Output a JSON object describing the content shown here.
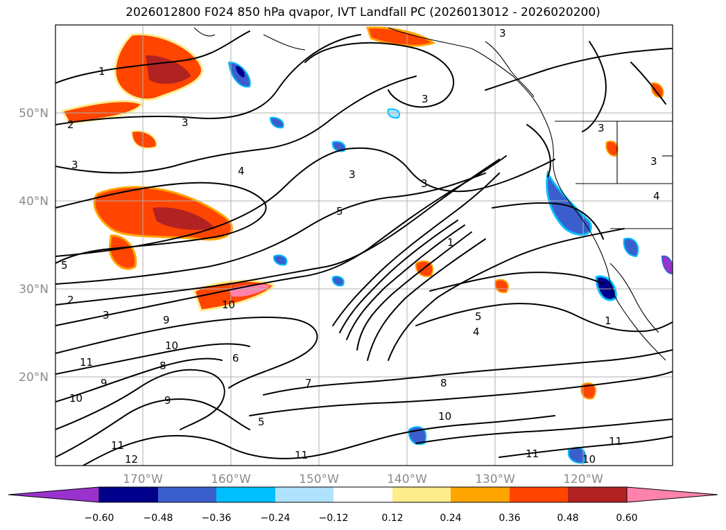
{
  "title": "2026012800 F024 850 hPa qvapor, IVT Landfall PC (2026013012 - 2026020200)",
  "lat_labels": [
    "50°N",
    "40°N",
    "30°N",
    "20°N"
  ],
  "lon_labels": [
    "170°W",
    "160°W",
    "150°W",
    "140°W",
    "130°W",
    "120°W"
  ],
  "colorbar": {
    "colors": [
      "#9a32cd",
      "#00008b",
      "#3a5fcd",
      "#00bfff",
      "#b0e2ff",
      "#ffffff",
      "#ffec8b",
      "#ffa500",
      "#ff4500",
      "#b22222",
      "#ff82ab"
    ],
    "tick_labels": [
      "−0.60",
      "−0.48",
      "−0.36",
      "−0.24",
      "−0.12",
      "0.12",
      "0.24",
      "0.36",
      "0.48",
      "0.60"
    ]
  },
  "contour_labels": [
    "1",
    "2",
    "3",
    "3",
    "3",
    "4",
    "3",
    "3",
    "3",
    "5",
    "1",
    "5",
    "2",
    "3",
    "10",
    "9",
    "11",
    "10",
    "8",
    "9",
    "10",
    "9",
    "11",
    "12",
    "6",
    "7",
    "5",
    "8",
    "10",
    "5",
    "4",
    "1",
    "3",
    "11",
    "10",
    "11",
    "11",
    "4",
    "3"
  ]
}
